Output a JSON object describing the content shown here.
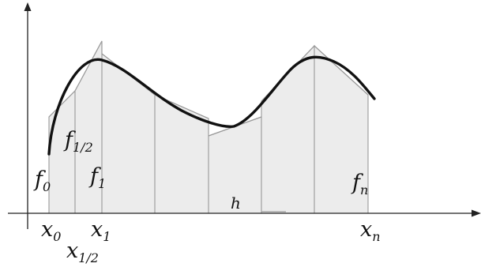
{
  "labels": {
    "f0": {
      "base": "f",
      "sub": "0"
    },
    "f_half": {
      "base": "f",
      "sub": "1/2"
    },
    "f1": {
      "base": "f",
      "sub": "1"
    },
    "fn": {
      "base": "f",
      "sub": "n"
    },
    "h": "h",
    "x0": {
      "base": "x",
      "sub": "0"
    },
    "x_half": {
      "base": "x",
      "sub": "1/2"
    },
    "x1": {
      "base": "x",
      "sub": "1"
    },
    "xn": {
      "base": "x",
      "sub": "n"
    }
  },
  "colors": {
    "strip_fill": "#ececec",
    "curve": "#111111",
    "grid": "#8f8f8f"
  }
}
